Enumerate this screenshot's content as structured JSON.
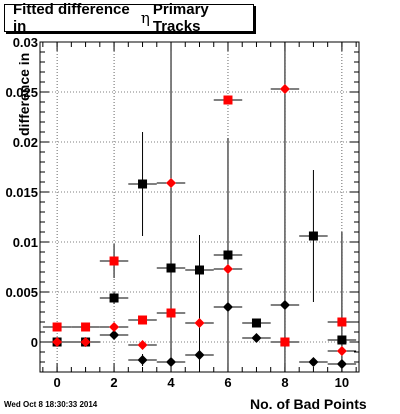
{
  "title": {
    "prefix": "Fitted difference in",
    "symbol": "η",
    "suffix": "Primary Tracks"
  },
  "timestamp": "Wed Oct  8 18:30:33 2014",
  "colors": {
    "series_black": "#000000",
    "series_red": "#ff0000",
    "frame": "#000000",
    "grid": "#000000"
  },
  "chart_data": {
    "type": "scatter",
    "xlabel": "No. of Bad Points",
    "ylabel": "difference in",
    "xlim": [
      -0.6,
      10.6
    ],
    "ylim": [
      -0.003,
      0.03
    ],
    "grid": true,
    "x_ticks": [
      "0",
      "2",
      "4",
      "6",
      "8",
      "10"
    ],
    "y_ticks": [
      "0",
      "0.005",
      "0.01",
      "0.015",
      "0.02",
      "0.025",
      "0.03"
    ],
    "series": [
      {
        "color": "black",
        "marker": "square",
        "points": [
          {
            "x": 0,
            "y": 0.0,
            "yerr": 0.0002
          },
          {
            "x": 1,
            "y": 0.0,
            "yerr": 0.0002
          },
          {
            "x": 2,
            "y": 0.0044,
            "yerr": 0.0006
          },
          {
            "x": 3,
            "y": 0.0158,
            "yerr": 0.0052
          },
          {
            "x": 4,
            "y": 0.0074,
            "yerr": 0.0008
          },
          {
            "x": 5,
            "y": 0.0072,
            "yerr": 0.0008
          },
          {
            "x": 6,
            "y": 0.0087,
            "yerr": 0.0006
          },
          {
            "x": 7,
            "y": 0.0019,
            "yerr": 0.0003
          },
          {
            "x": 8,
            "y": 0.0,
            "yerr": 0.0005
          },
          {
            "x": 9,
            "y": 0.0106,
            "yerr": 0.0066
          },
          {
            "x": 10,
            "y": 0.0002,
            "yerr": 0.0108
          }
        ]
      },
      {
        "color": "red",
        "marker": "square",
        "points": [
          {
            "x": 0,
            "y": 0.0015,
            "yerr": 0.0002
          },
          {
            "x": 1,
            "y": 0.0015,
            "yerr": 0.0002
          },
          {
            "x": 2,
            "y": 0.0081,
            "yerr": 0.0017
          },
          {
            "x": 3,
            "y": 0.0022,
            "yerr": 0.0004
          },
          {
            "x": 4,
            "y": 0.0029,
            "yerr": 0.0004
          },
          {
            "x": 6,
            "y": 0.0242,
            "yerr": 0.0004
          },
          {
            "x": 8,
            "y": 0.0,
            "yerr": 0.0004
          },
          {
            "x": 10,
            "y": 0.002,
            "yerr": 0.0004
          }
        ]
      },
      {
        "color": "black",
        "marker": "diamond",
        "points": [
          {
            "x": 0,
            "y": 0.0,
            "yerr": 0.0002
          },
          {
            "x": 1,
            "y": 0.0,
            "yerr": 0.0002
          },
          {
            "x": 2,
            "y": 0.0007,
            "yerr": 0.0003
          },
          {
            "x": 3,
            "y": -0.0018,
            "yerr": 0.0006
          },
          {
            "x": 4,
            "y": -0.002,
            "yerr": 0.0014
          },
          {
            "x": 5,
            "y": -0.0013,
            "yerr": 0.0006
          },
          {
            "x": 6,
            "y": 0.0035,
            "yerr": 0.0006
          },
          {
            "x": 7,
            "y": 0.0004,
            "yerr": 0.0002
          },
          {
            "x": 8,
            "y": 0.0037,
            "yerr": 0.0004
          },
          {
            "x": 9,
            "y": -0.002,
            "yerr": 0.0004
          },
          {
            "x": 10,
            "y": -0.0022,
            "yerr": 0.0004
          }
        ]
      },
      {
        "color": "red",
        "marker": "diamond",
        "points": [
          {
            "x": 0,
            "y": 0.0,
            "yerr": 0.0002
          },
          {
            "x": 1,
            "y": 0.0,
            "yerr": 0.0002
          },
          {
            "x": 2,
            "y": 0.0015,
            "yerr": 0.0003
          },
          {
            "x": 3,
            "y": -0.0003,
            "yerr": 0.0004
          },
          {
            "x": 4,
            "y": 0.0159,
            "yerr": 0.0178
          },
          {
            "x": 5,
            "y": 0.0019,
            "yerr": 0.0088
          },
          {
            "x": 6,
            "y": 0.0073,
            "yerr": 0.0131
          },
          {
            "x": 8,
            "y": 0.0253,
            "yerr": 0.0283
          },
          {
            "x": 10,
            "y": -0.0009,
            "yerr": 0.0004
          }
        ]
      }
    ]
  }
}
